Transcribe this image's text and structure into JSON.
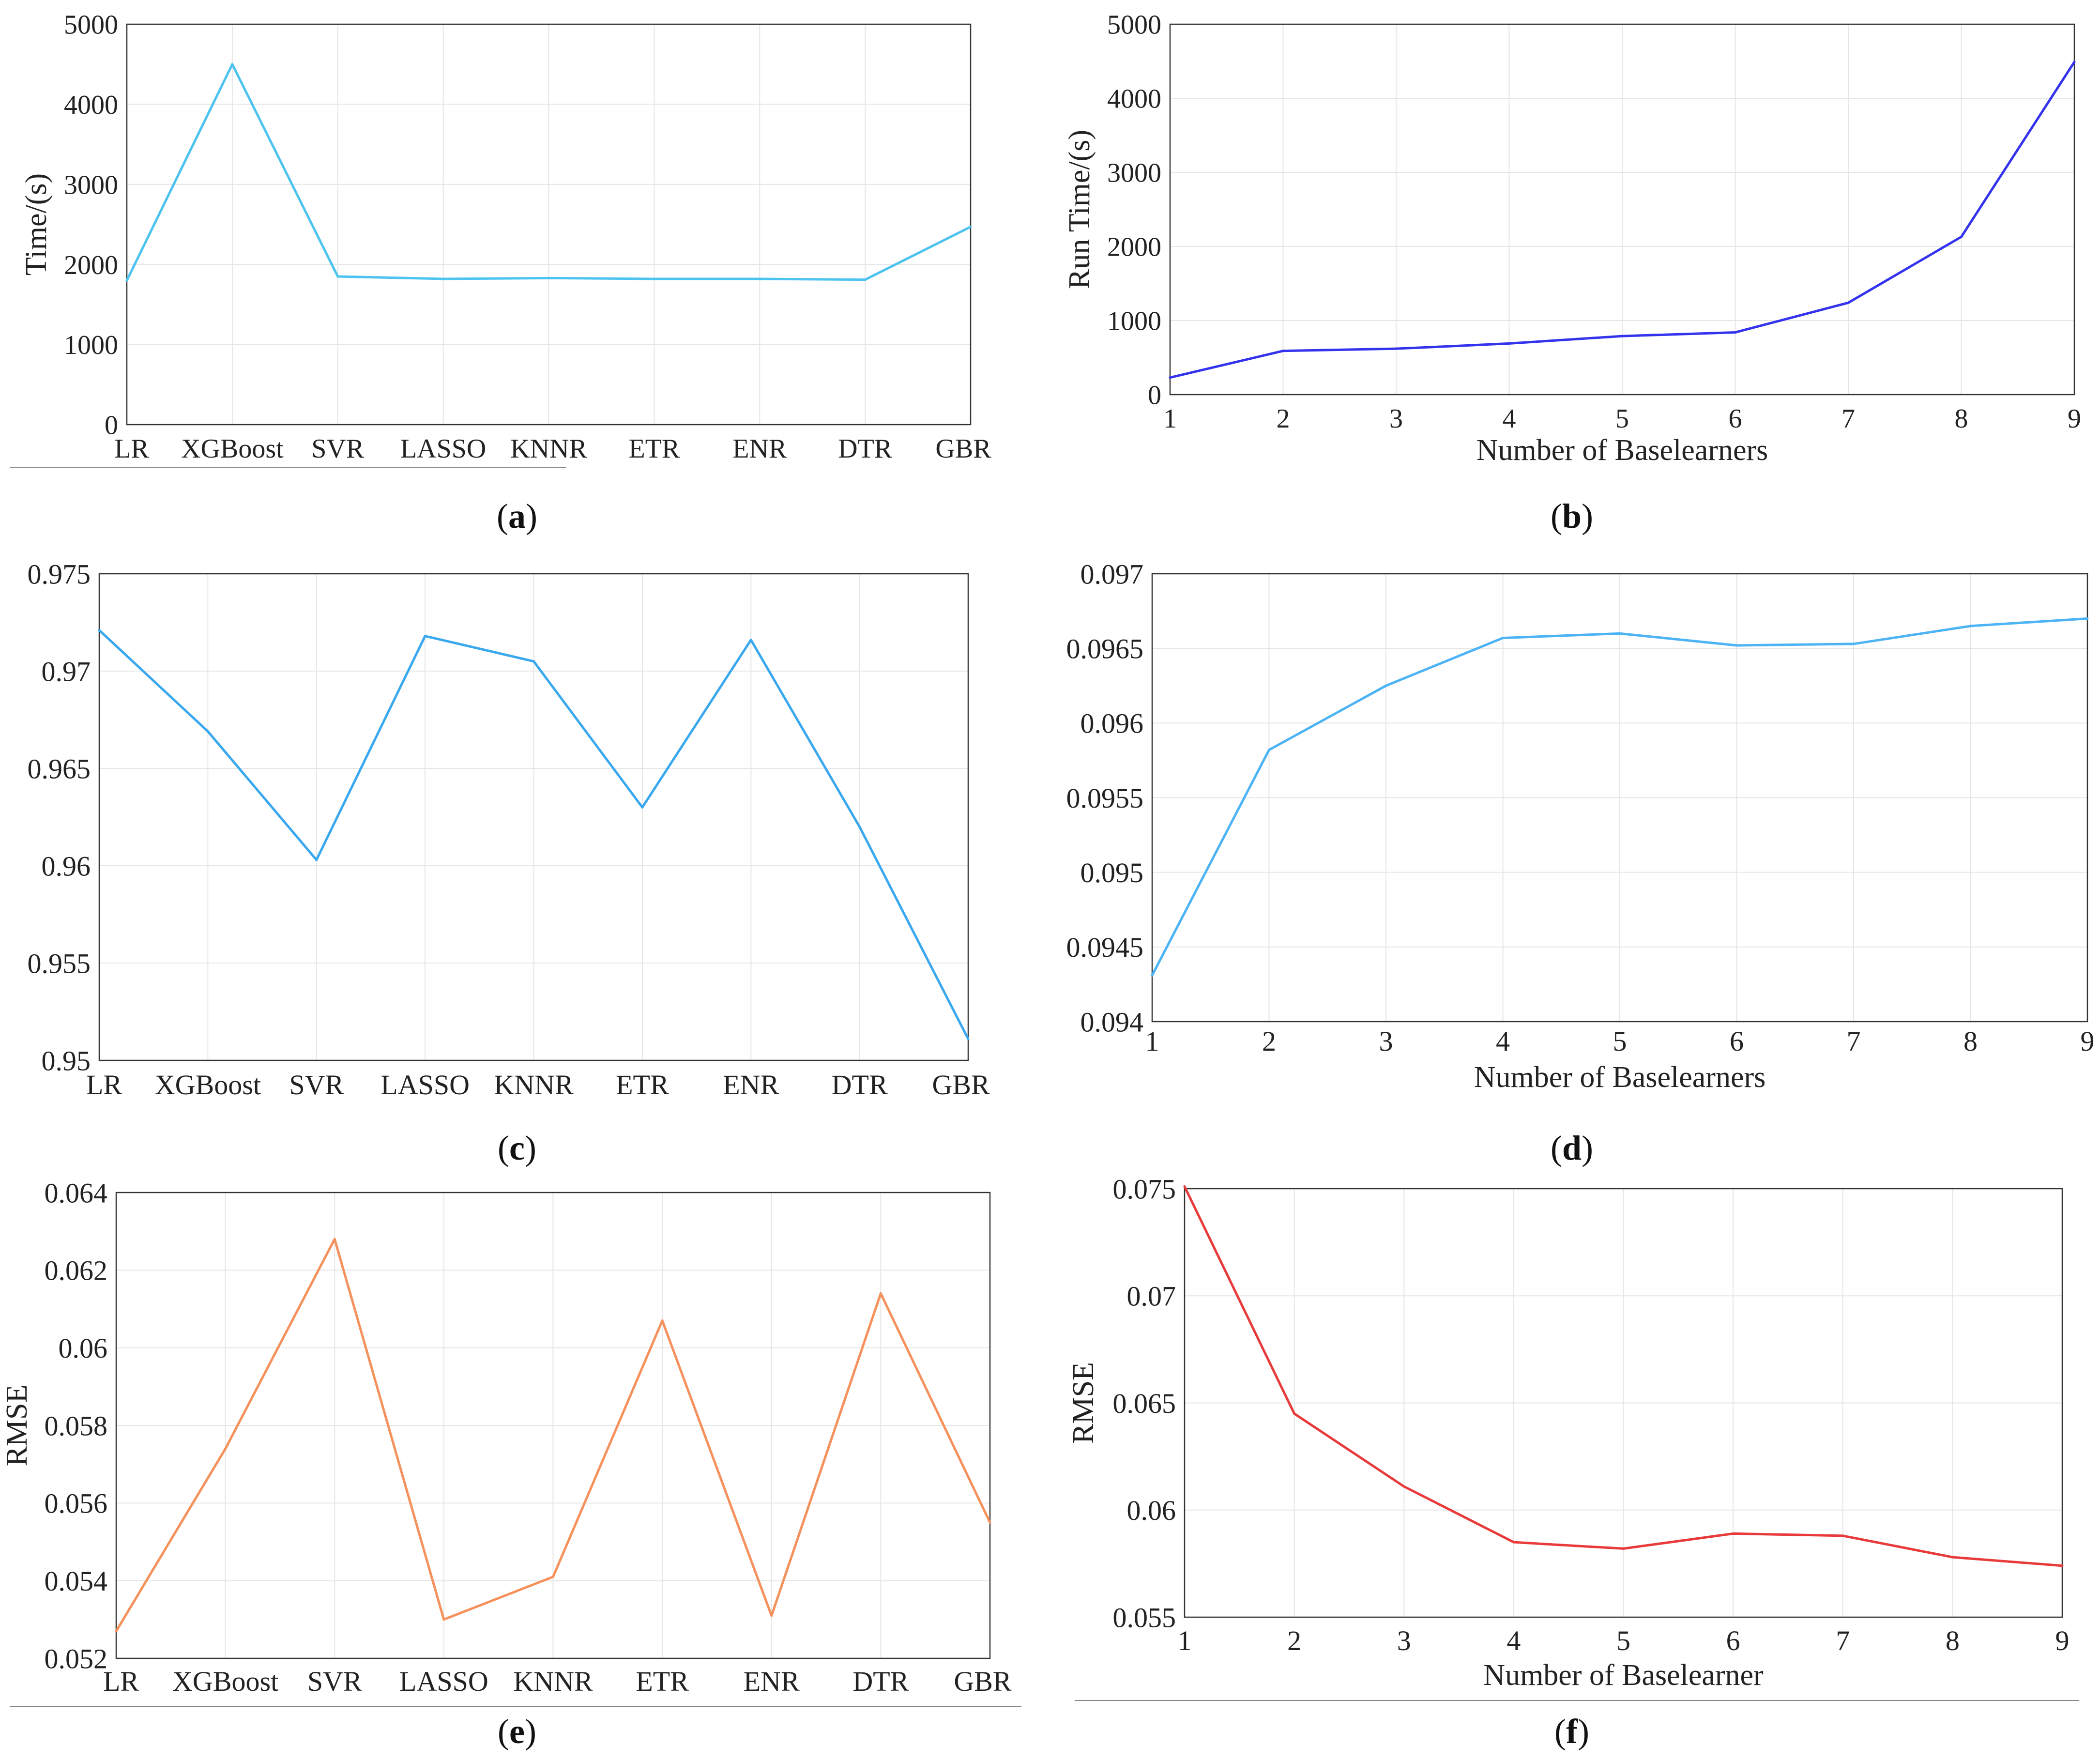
{
  "figure": {
    "captions": [
      "(a)",
      "(b)",
      "(c)",
      "(d)",
      "(e)",
      "(f)"
    ]
  },
  "colors": {
    "a": "#4dc3f0",
    "b": "#3333ee",
    "c": "#3aa8ee",
    "d": "#4cb3f5",
    "e": "#f5915c",
    "f": "#e83a3a",
    "grid": "#e6e6e6",
    "axis": "#333333"
  },
  "chart_data": [
    {
      "id": "a",
      "type": "line",
      "categories": [
        "LR",
        "XGBoost",
        "SVR",
        "LASSO",
        "KNNR",
        "ETR",
        "ENR",
        "DTR",
        "GBR"
      ],
      "values": [
        1800,
        4500,
        1850,
        1820,
        1830,
        1820,
        1820,
        1810,
        2470
      ],
      "ylabel": "Time/(s)",
      "xlabel": "",
      "ylim": [
        0,
        5000
      ],
      "yticks": [
        0,
        1000,
        2000,
        3000,
        4000,
        5000
      ],
      "yticklabels": [
        "0",
        "1000",
        "2000",
        "3000",
        "4000",
        "5000"
      ],
      "grid": true
    },
    {
      "id": "b",
      "type": "line",
      "x": [
        1,
        2,
        3,
        4,
        5,
        6,
        7,
        8,
        9
      ],
      "values": [
        230,
        590,
        620,
        690,
        790,
        840,
        1240,
        2130,
        4490
      ],
      "ylabel": "Run Time/(s)",
      "xlabel": "Number of Baselearners",
      "xlim": [
        1,
        9
      ],
      "ylim": [
        0,
        5000
      ],
      "yticks": [
        0,
        1000,
        2000,
        3000,
        4000,
        5000
      ],
      "yticklabels": [
        "0",
        "1000",
        "2000",
        "3000",
        "4000",
        "5000"
      ],
      "xticklabels": [
        "1",
        "2",
        "3",
        "4",
        "5",
        "6",
        "7",
        "8",
        "9"
      ],
      "grid": true
    },
    {
      "id": "c",
      "type": "line",
      "categories": [
        "LR",
        "XGBoost",
        "SVR",
        "LASSO",
        "KNNR",
        "ETR",
        "ENR",
        "DTR",
        "GBR"
      ],
      "values": [
        0.9721,
        0.9669,
        0.9603,
        0.9718,
        0.9705,
        0.963,
        0.9716,
        0.962,
        0.9511
      ],
      "ylabel": "",
      "xlabel": "",
      "ylim": [
        0.95,
        0.975
      ],
      "yticks": [
        0.95,
        0.955,
        0.96,
        0.965,
        0.97,
        0.975
      ],
      "yticklabels": [
        "0.95",
        "0.955",
        "0.96",
        "0.965",
        "0.97",
        "0.975"
      ],
      "grid": true
    },
    {
      "id": "d",
      "type": "line",
      "x": [
        1,
        2,
        3,
        4,
        5,
        6,
        7,
        8,
        9
      ],
      "values": [
        0.09431,
        0.09582,
        0.09625,
        0.09657,
        0.0966,
        0.09652,
        0.09653,
        0.09665,
        0.0967
      ],
      "ylabel": "",
      "xlabel": "Number of Baselearners",
      "xlim": [
        1,
        9
      ],
      "ylim": [
        0.094,
        0.097
      ],
      "yticks": [
        0.094,
        0.0945,
        0.095,
        0.0955,
        0.096,
        0.0965,
        0.097
      ],
      "yticklabels": [
        "0.094",
        "0.0945",
        "0.095",
        "0.0955",
        "0.096",
        "0.0965",
        "0.097"
      ],
      "xticklabels": [
        "1",
        "2",
        "3",
        "4",
        "5",
        "6",
        "7",
        "8",
        "9"
      ],
      "grid": true
    },
    {
      "id": "e",
      "type": "line",
      "categories": [
        "LR",
        "XGBoost",
        "SVR",
        "LASSO",
        "KNNR",
        "ETR",
        "ENR",
        "DTR",
        "GBR"
      ],
      "values": [
        0.0527,
        0.0574,
        0.0628,
        0.053,
        0.0541,
        0.0607,
        0.0531,
        0.0614,
        0.0555
      ],
      "ylabel": "RMSE",
      "xlabel": "",
      "ylim": [
        0.052,
        0.064
      ],
      "yticks": [
        0.052,
        0.054,
        0.056,
        0.058,
        0.06,
        0.062,
        0.064
      ],
      "yticklabels": [
        "0.052",
        "0.054",
        "0.056",
        "0.058",
        "0.06",
        "0.062",
        "0.064"
      ],
      "grid": true
    },
    {
      "id": "f",
      "type": "line",
      "x": [
        1,
        2,
        3,
        4,
        5,
        6,
        7,
        8,
        9
      ],
      "values": [
        0.0751,
        0.0645,
        0.0611,
        0.0585,
        0.0582,
        0.0589,
        0.0588,
        0.0578,
        0.0574
      ],
      "ylabel": "RMSE",
      "xlabel": "Number of Baselearner",
      "xlim": [
        1,
        9
      ],
      "ylim": [
        0.055,
        0.075
      ],
      "yticks": [
        0.055,
        0.06,
        0.065,
        0.07,
        0.075
      ],
      "yticklabels": [
        "0.055",
        "0.06",
        "0.065",
        "0.07",
        "0.075"
      ],
      "xticklabels": [
        "1",
        "2",
        "3",
        "4",
        "5",
        "6",
        "7",
        "8",
        "9"
      ],
      "grid": true
    }
  ]
}
